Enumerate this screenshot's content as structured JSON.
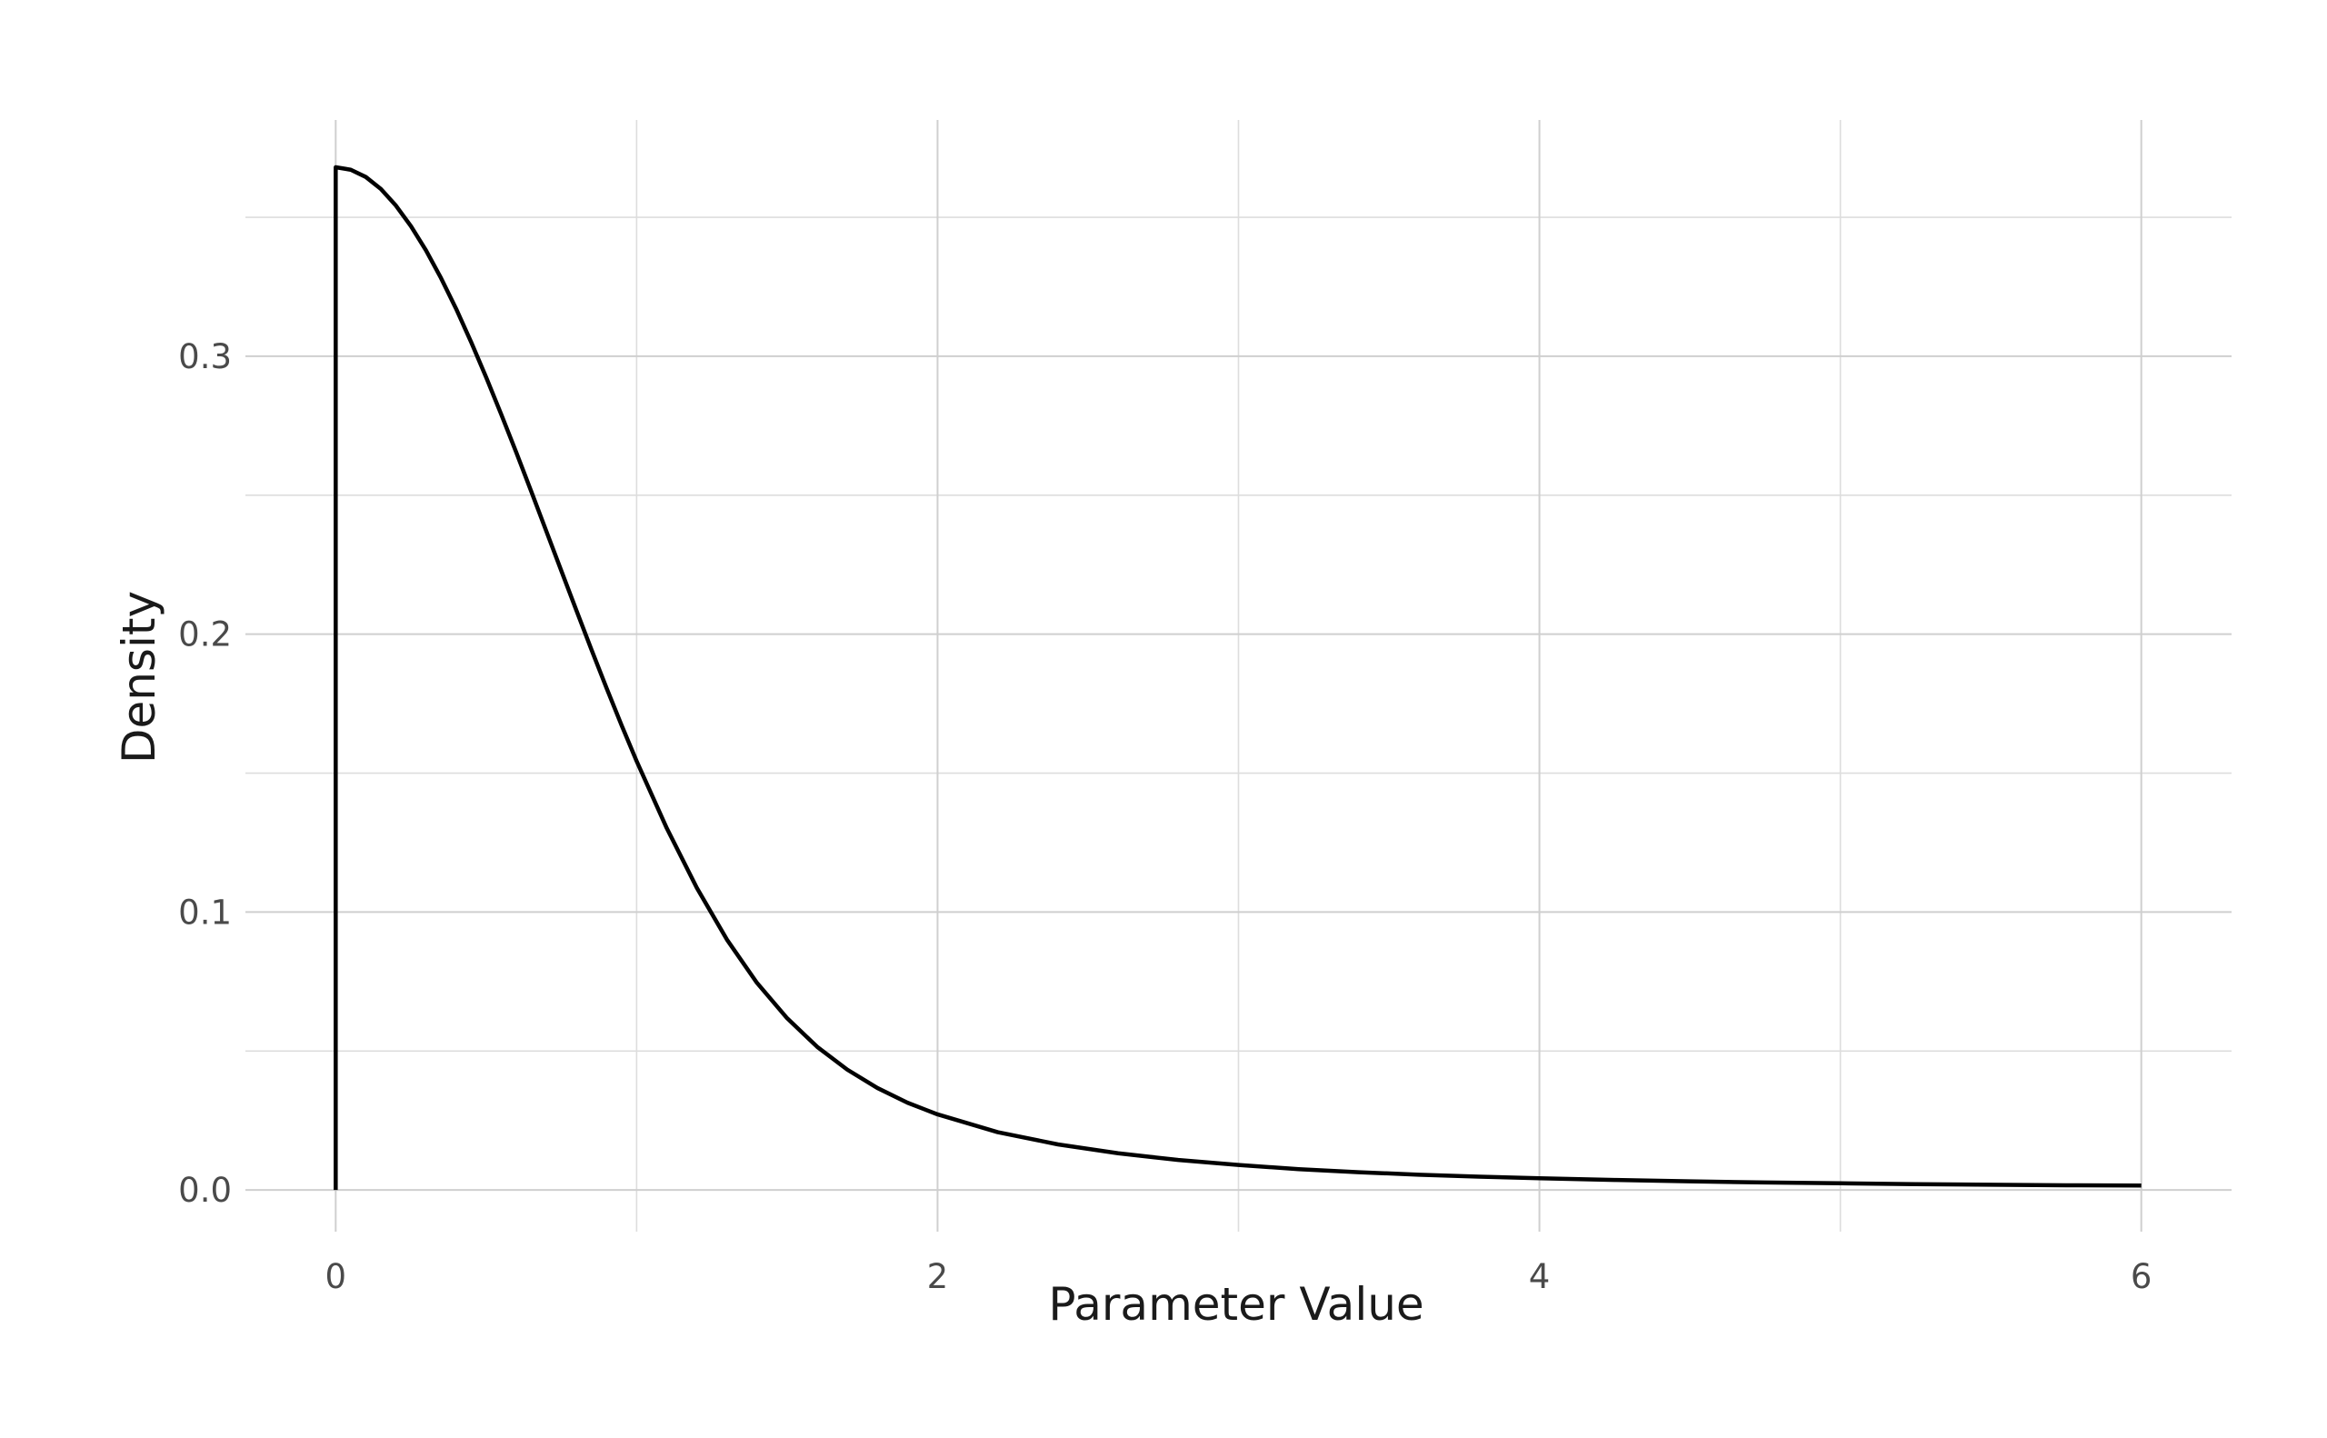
{
  "chart_data": {
    "type": "line",
    "title": "",
    "xlabel": "Parameter Value",
    "ylabel": "Density",
    "xlim": [
      -0.3,
      6.3
    ],
    "ylim": [
      -0.015,
      0.385
    ],
    "x_ticks": [
      0,
      2,
      4,
      6
    ],
    "x_tick_labels": [
      "0",
      "2",
      "4",
      "6"
    ],
    "x_minor_ticks": [
      1,
      3,
      5
    ],
    "y_ticks": [
      0.0,
      0.1,
      0.2,
      0.3
    ],
    "y_tick_labels": [
      "0.0",
      "0.1",
      "0.2",
      "0.3"
    ],
    "y_minor_ticks": [
      0.05,
      0.15,
      0.25,
      0.35
    ],
    "grid": true,
    "legend": "none",
    "line_color": "#000000",
    "series": [
      {
        "x": [
          0,
          0,
          0.05,
          0.1,
          0.15,
          0.2,
          0.25,
          0.3,
          0.35,
          0.4,
          0.45,
          0.5,
          0.55,
          0.6,
          0.65,
          0.7,
          0.75,
          0.8,
          0.85,
          0.9,
          0.95,
          1.0,
          1.1,
          1.2,
          1.3,
          1.4,
          1.5,
          1.6,
          1.7,
          1.8,
          1.9,
          2.0,
          2.2,
          2.4,
          2.6,
          2.8,
          3.0,
          3.2,
          3.4,
          3.6,
          3.8,
          4.0,
          4.25,
          4.5,
          4.75,
          5.0,
          5.25,
          5.5,
          5.75,
          6.0
        ],
        "y": [
          0,
          0.368,
          0.3671,
          0.3645,
          0.3602,
          0.3542,
          0.3468,
          0.3381,
          0.3281,
          0.3171,
          0.3051,
          0.2924,
          0.2791,
          0.2654,
          0.2513,
          0.237,
          0.2227,
          0.2085,
          0.1944,
          0.1806,
          0.1672,
          0.1543,
          0.1302,
          0.1087,
          0.0901,
          0.0745,
          0.0618,
          0.0515,
          0.0433,
          0.0367,
          0.0314,
          0.0272,
          0.0208,
          0.0164,
          0.0132,
          0.0108,
          0.009,
          0.0075,
          0.0064,
          0.0055,
          0.0048,
          0.0042,
          0.0036,
          0.0031,
          0.0027,
          0.0024,
          0.0021,
          0.0019,
          0.0017,
          0.0016
        ]
      }
    ]
  }
}
